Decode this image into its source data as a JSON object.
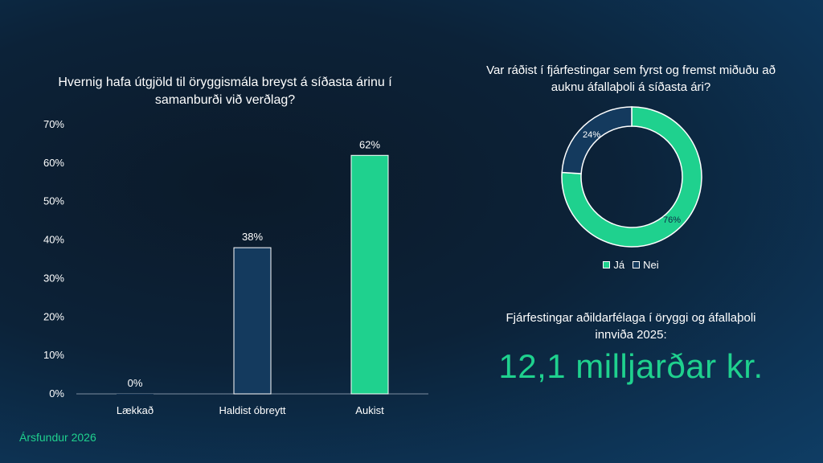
{
  "chart_data": [
    {
      "type": "bar",
      "title": "Hvernig hafa útgjöld til öryggismála breyst á síðasta árinu í samanburði við verðlag?",
      "categories": [
        "Lækkað",
        "Haldist óbreytt",
        "Aukist"
      ],
      "values": [
        0,
        38,
        62
      ],
      "value_labels": [
        "0%",
        "38%",
        "62%"
      ],
      "colors": [
        "#1a3f63",
        "#143a5e",
        "#1fd18e"
      ],
      "ylim": [
        0,
        70
      ],
      "yticks": [
        "0%",
        "10%",
        "20%",
        "30%",
        "40%",
        "50%",
        "60%",
        "70%"
      ],
      "grid": false
    },
    {
      "type": "pie",
      "donut": true,
      "title": "Var ráðist í fjárfestingar sem fyrst og fremst miðuðu að auknu áfallaþoli á síðasta ári?",
      "slices": [
        {
          "label": "Já",
          "value": 76,
          "value_label": "76%",
          "color": "#1fd18e"
        },
        {
          "label": "Nei",
          "value": 24,
          "value_label": "24%",
          "color": "#143a5e"
        }
      ],
      "legend": "bottom"
    }
  ],
  "investment": {
    "label": "Fjárfestingar aðildarfélaga í öryggi og áfallaþoli innviða 2025:",
    "value": "12,1 milljarðar kr."
  },
  "footer": "Ársfundur 2026"
}
